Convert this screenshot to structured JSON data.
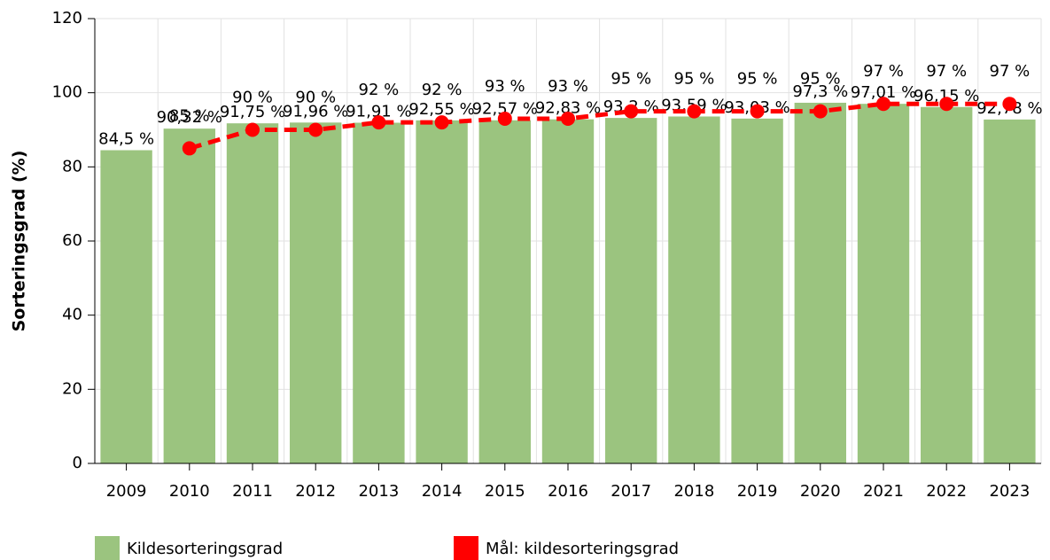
{
  "chart_data": {
    "type": "bar_line",
    "y_label": "Sorteringsgrad (%)",
    "categories": [
      "2009",
      "2010",
      "2011",
      "2012",
      "2013",
      "2014",
      "2015",
      "2016",
      "2017",
      "2018",
      "2019",
      "2020",
      "2021",
      "2022",
      "2023"
    ],
    "ylim": [
      0,
      120
    ],
    "yticks": [
      0,
      20,
      40,
      60,
      80,
      100,
      120
    ],
    "grid": true,
    "legend": "bottom",
    "series": [
      {
        "name": "Kildesorteringsgrad",
        "type": "bar",
        "color": "#9bc47f",
        "values": [
          84.5,
          90.32,
          91.75,
          91.96,
          91.91,
          92.55,
          92.57,
          92.83,
          93.2,
          93.59,
          93.03,
          97.3,
          97.01,
          96.15,
          92.78
        ],
        "value_labels": [
          "84,5 %",
          "90,32 %",
          "91,75 %",
          "91,96 %",
          "91,91 %",
          "92,55 %",
          "92,57 %",
          "92,83 %",
          "93,2 %",
          "93,59 %",
          "93,03 %",
          "97,3 %",
          "97,01 %",
          "96,15 %",
          "92,78 %"
        ]
      },
      {
        "name": "Mål: kildesorteringsgrad",
        "type": "line",
        "color": "#ff0000",
        "values": [
          null,
          85,
          90,
          90,
          92,
          92,
          93,
          93,
          95,
          95,
          95,
          95,
          97,
          97,
          97
        ],
        "value_labels": [
          null,
          "85 %",
          "90 %",
          "90 %",
          "92 %",
          "92 %",
          "93 %",
          "93 %",
          "95 %",
          "95 %",
          "95 %",
          "95 %",
          "97 %",
          "97 %",
          "97 %"
        ]
      }
    ]
  }
}
